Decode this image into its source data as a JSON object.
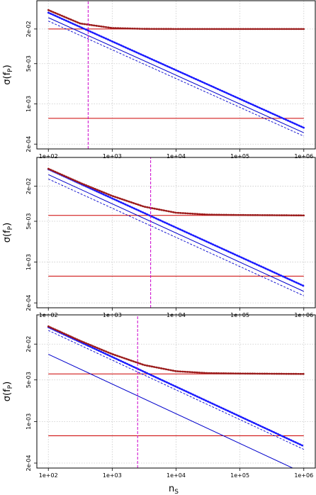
{
  "x_axis_title": "n",
  "x_axis_title_subscript": "S",
  "y_axis_title": "σ(f",
  "y_axis_title_subscript": "P",
  "y_axis_title_close": ")",
  "colors": {
    "red_line": "#cc0000",
    "dark_red_dotted": "#9b1c1c",
    "blue": "#0000cc",
    "blue_dotted": "#1a1aff",
    "magenta_vline": "#cc00cc",
    "grid": "#c9c9c9"
  },
  "chart_data": [
    {
      "type": "line",
      "x_scale": "log",
      "y_scale": "log",
      "xlim": [
        100,
        1000000
      ],
      "ylim": [
        0.000165,
        0.062
      ],
      "grid": true,
      "x_tick_values": [
        100,
        1000,
        10000,
        100000,
        1000000
      ],
      "x_tick_labels": [
        "1e+02",
        "1e+03",
        "1e+04",
        "1e+05",
        "1e+06"
      ],
      "y_tick_values": [
        0.0002,
        0.001,
        0.005,
        0.02
      ],
      "y_tick_labels": [
        "2e-04",
        "1e-03",
        "5e-03",
        "2e-02"
      ],
      "series": [
        {
          "style": "solid",
          "color_key": "red_line",
          "x": [
            100,
            1000000
          ],
          "y": [
            0.02,
            0.02
          ]
        },
        {
          "style": "solid",
          "color_key": "red_line",
          "x": [
            100,
            1000000
          ],
          "y": [
            0.00056,
            0.00056
          ]
        },
        {
          "style": "solid",
          "color_key": "blue",
          "x": [
            100,
            1000000
          ],
          "y": [
            0.0315,
            0.000315
          ]
        },
        {
          "style": "dashed",
          "color_key": "blue",
          "x": [
            100,
            1000000
          ],
          "y": [
            0.0275,
            0.000275
          ]
        },
        {
          "style": "dotted",
          "color_key": "blue_dotted",
          "x": [
            100,
            1000000
          ],
          "y": [
            0.0385,
            0.000385
          ]
        },
        {
          "style": "dotted",
          "color_key": "dark_red_dotted",
          "x": [
            100,
            316,
            1000,
            3160,
            10000,
            100000,
            1000000
          ],
          "y": [
            0.0427,
            0.0249,
            0.0208,
            0.0201,
            0.02,
            0.02,
            0.02
          ]
        },
        {
          "style": "solid",
          "color_key": "magenta_vline",
          "vertical": true,
          "x": [
            420,
            420
          ],
          "y": [
            0.000165,
            0.062
          ]
        }
      ]
    },
    {
      "type": "line",
      "x_scale": "log",
      "y_scale": "log",
      "xlim": [
        100,
        1000000
      ],
      "ylim": [
        0.000165,
        0.062
      ],
      "grid": true,
      "x_tick_values": [
        100,
        1000,
        10000,
        100000,
        1000000
      ],
      "x_tick_labels": [
        "1e+02",
        "1e+03",
        "1e+04",
        "1e+05",
        "1e+06"
      ],
      "y_tick_values": [
        0.0002,
        0.001,
        0.005,
        0.02
      ],
      "y_tick_labels": [
        "2e-04",
        "1e-03",
        "5e-03",
        "2e-02"
      ],
      "series": [
        {
          "style": "solid",
          "color_key": "red_line",
          "x": [
            100,
            1000000
          ],
          "y": [
            0.0063,
            0.0063
          ]
        },
        {
          "style": "solid",
          "color_key": "red_line",
          "x": [
            100,
            1000000
          ],
          "y": [
            0.000575,
            0.000575
          ]
        },
        {
          "style": "solid",
          "color_key": "blue",
          "x": [
            100,
            1000000
          ],
          "y": [
            0.0315,
            0.000315
          ]
        },
        {
          "style": "dashed",
          "color_key": "blue",
          "x": [
            100,
            1000000
          ],
          "y": [
            0.0265,
            0.000265
          ]
        },
        {
          "style": "dotted",
          "color_key": "blue_dotted",
          "x": [
            100,
            1000000
          ],
          "y": [
            0.039,
            0.00039
          ]
        },
        {
          "style": "dotted",
          "color_key": "dark_red_dotted",
          "x": [
            100,
            316,
            1000,
            3160,
            10000,
            31600,
            100000,
            1000000
          ],
          "y": [
            0.0397,
            0.0227,
            0.0136,
            0.0089,
            0.007,
            0.0065,
            0.0064,
            0.0063
          ]
        },
        {
          "style": "solid",
          "color_key": "magenta_vline",
          "vertical": true,
          "x": [
            4000,
            4000
          ],
          "y": [
            0.000165,
            0.062
          ]
        }
      ]
    },
    {
      "type": "line",
      "x_scale": "log",
      "y_scale": "log",
      "xlim": [
        100,
        1000000
      ],
      "ylim": [
        0.000165,
        0.062
      ],
      "grid": true,
      "x_tick_values": [
        100,
        1000,
        10000,
        100000,
        1000000
      ],
      "x_tick_labels": [
        "1e+02",
        "1e+03",
        "1e+04",
        "1e+05",
        "1e+06"
      ],
      "y_tick_values": [
        0.0002,
        0.001,
        0.005,
        0.02
      ],
      "y_tick_labels": [
        "2e-04",
        "1e-03",
        "5e-03",
        "2e-02"
      ],
      "series": [
        {
          "style": "solid",
          "color_key": "red_line",
          "x": [
            100,
            1000000
          ],
          "y": [
            0.0063,
            0.0063
          ]
        },
        {
          "style": "solid",
          "color_key": "red_line",
          "x": [
            100,
            1000000
          ],
          "y": [
            0.000575,
            0.000575
          ]
        },
        {
          "style": "solid",
          "color_key": "blue",
          "x": [
            100,
            1000000
          ],
          "y": [
            0.0135,
            0.000135
          ]
        },
        {
          "style": "dashed",
          "color_key": "blue",
          "x": [
            100,
            1000000
          ],
          "y": [
            0.034,
            0.00034
          ]
        },
        {
          "style": "dotted",
          "color_key": "blue_dotted",
          "x": [
            100,
            1000000
          ],
          "y": [
            0.0385,
            0.000385
          ]
        },
        {
          "style": "dotted",
          "color_key": "dark_red_dotted",
          "x": [
            100,
            316,
            1000,
            3160,
            10000,
            31600,
            100000,
            1000000
          ],
          "y": [
            0.0397,
            0.0227,
            0.0136,
            0.0089,
            0.007,
            0.0065,
            0.0064,
            0.0063
          ]
        },
        {
          "style": "solid",
          "color_key": "magenta_vline",
          "vertical": true,
          "x": [
            2500,
            2500
          ],
          "y": [
            0.000165,
            0.062
          ]
        }
      ]
    }
  ]
}
